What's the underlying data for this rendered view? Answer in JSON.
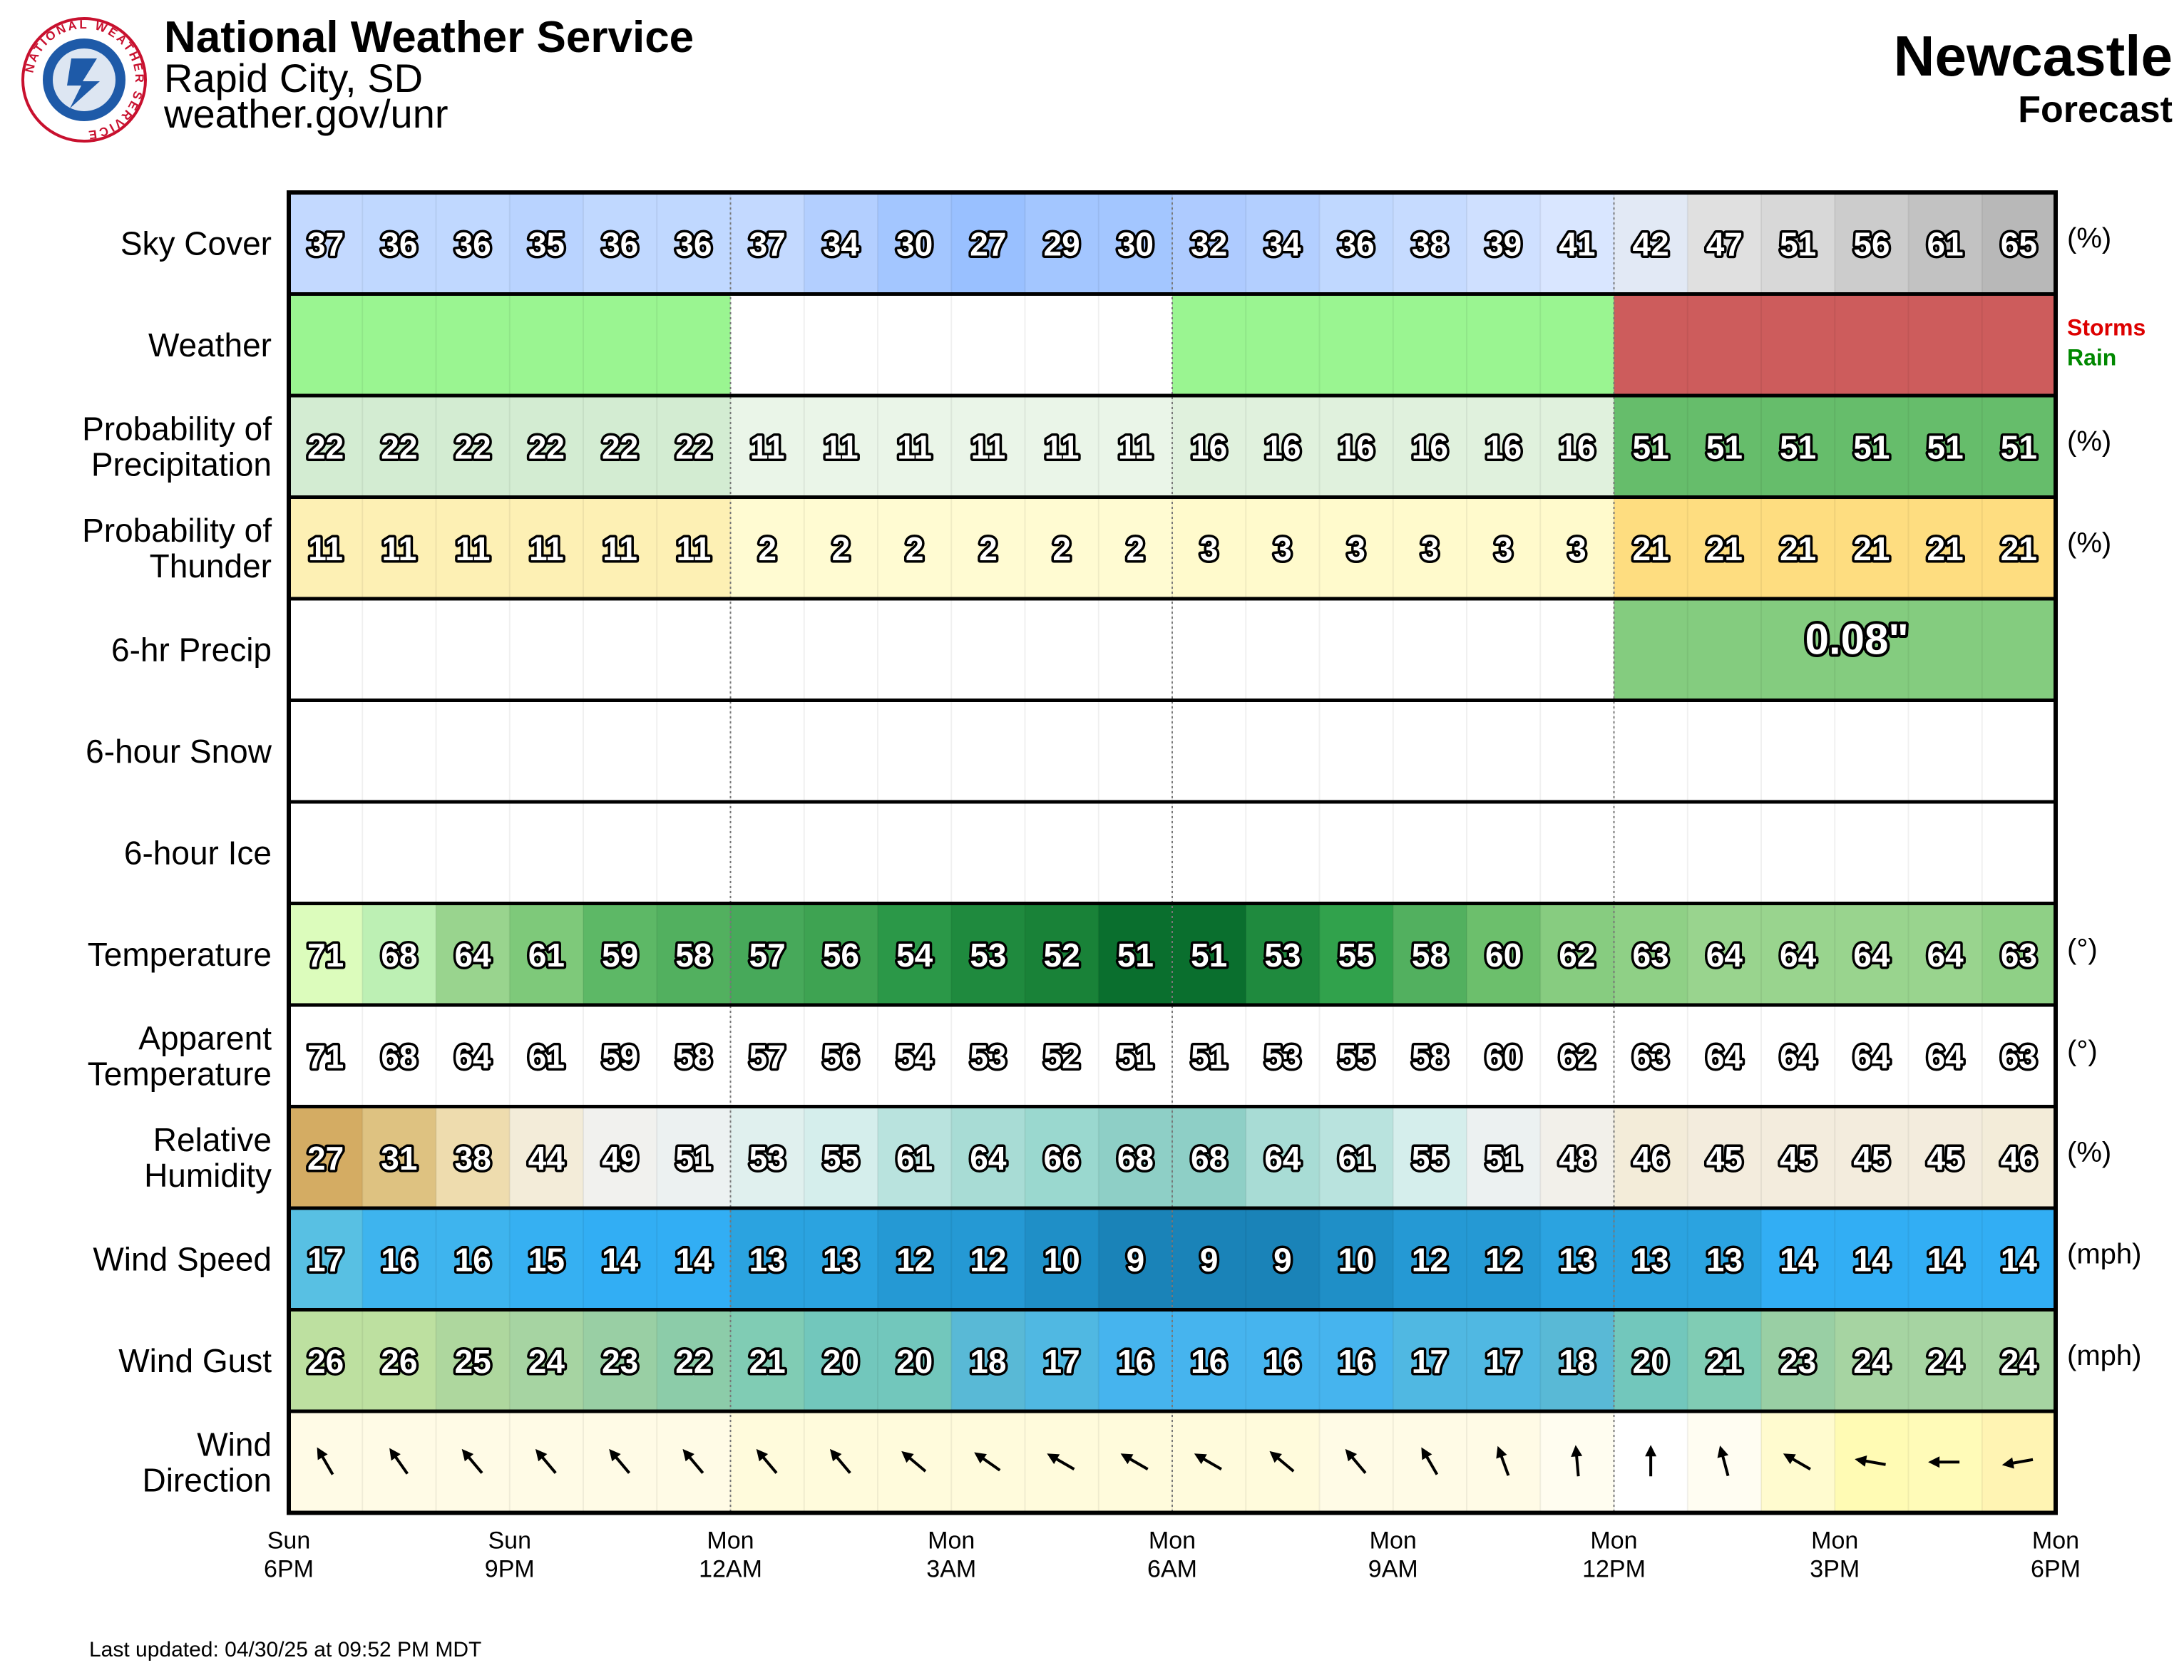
{
  "header": {
    "org": "National Weather Service",
    "office": "Rapid City, SD",
    "url": "weather.gov/unr",
    "location": "Newcastle",
    "subtitle": "Forecast",
    "logo_text": "NATIONAL WEATHER SERVICE"
  },
  "footer": {
    "updated": "Last updated: 04/30/25 at 09:52 PM MDT"
  },
  "chart_data": {
    "type": "table",
    "hours": 24,
    "x_ticks": [
      {
        "index": 0,
        "day": "Sun",
        "time": "6PM"
      },
      {
        "index": 3,
        "day": "Sun",
        "time": "9PM"
      },
      {
        "index": 6,
        "day": "Mon",
        "time": "12AM"
      },
      {
        "index": 9,
        "day": "Mon",
        "time": "3AM"
      },
      {
        "index": 12,
        "day": "Mon",
        "time": "6AM"
      },
      {
        "index": 15,
        "day": "Mon",
        "time": "9AM"
      },
      {
        "index": 18,
        "day": "Mon",
        "time": "12PM"
      },
      {
        "index": 21,
        "day": "Mon",
        "time": "3PM"
      },
      {
        "index": 24,
        "day": "Mon",
        "time": "6PM"
      }
    ],
    "rows": [
      {
        "key": "sky",
        "label": [
          "Sky Cover"
        ],
        "unit": "(%)",
        "values": [
          37,
          36,
          36,
          35,
          36,
          36,
          37,
          34,
          30,
          27,
          29,
          30,
          32,
          34,
          36,
          38,
          39,
          41,
          42,
          47,
          51,
          56,
          61,
          65
        ],
        "colors": [
          "#c3d9ff",
          "#c0d8ff",
          "#c0d8ff",
          "#b9d3ff",
          "#c0d8ff",
          "#c0d8ff",
          "#c3d9ff",
          "#b3cfff",
          "#a3c6ff",
          "#99c0ff",
          "#a3c6ff",
          "#a3c6ff",
          "#aecbff",
          "#b3cfff",
          "#c0d8ff",
          "#c6dbff",
          "#cfe0ff",
          "#d9e6ff",
          "#e2e9f5",
          "#e0e0e0",
          "#d8d8d8",
          "#cccccc",
          "#c2c2c2",
          "#b8b8b8"
        ]
      },
      {
        "key": "weather",
        "label": [
          "Weather"
        ],
        "unit": "",
        "colors": [
          "#9af591",
          "#9af591",
          "#9af591",
          "#9af591",
          "#9af591",
          "#9af591",
          "#ffffff",
          "#ffffff",
          "#ffffff",
          "#ffffff",
          "#ffffff",
          "#ffffff",
          "#9af591",
          "#9af591",
          "#9af591",
          "#9af591",
          "#9af591",
          "#9af591",
          "#cd5c5c",
          "#cd5c5c",
          "#cd5c5c",
          "#cd5c5c",
          "#cd5c5c",
          "#cd5c5c"
        ],
        "legend": [
          {
            "text": "Storms",
            "color": "#dd0000"
          },
          {
            "text": "Rain",
            "color": "#008800"
          }
        ]
      },
      {
        "key": "pop",
        "label": [
          "Probability of",
          "Precipitation"
        ],
        "unit": "(%)",
        "values": [
          22,
          22,
          22,
          22,
          22,
          22,
          11,
          11,
          11,
          11,
          11,
          11,
          16,
          16,
          16,
          16,
          16,
          16,
          51,
          51,
          51,
          51,
          51,
          51
        ],
        "colors": [
          "#d3ecd2",
          "#d3ecd2",
          "#d3ecd2",
          "#d3ecd2",
          "#d3ecd2",
          "#d3ecd2",
          "#eaf5e8",
          "#eaf5e8",
          "#eaf5e8",
          "#eaf5e8",
          "#eaf5e8",
          "#eaf5e8",
          "#e0f1dd",
          "#e0f1dd",
          "#e0f1dd",
          "#e0f1dd",
          "#e0f1dd",
          "#e0f1dd",
          "#66bd6b",
          "#66bd6b",
          "#66bd6b",
          "#66bd6b",
          "#66bd6b",
          "#66bd6b"
        ]
      },
      {
        "key": "thunder",
        "label": [
          "Probability of",
          "Thunder"
        ],
        "unit": "(%)",
        "values": [
          11,
          11,
          11,
          11,
          11,
          11,
          2,
          2,
          2,
          2,
          2,
          2,
          3,
          3,
          3,
          3,
          3,
          3,
          21,
          21,
          21,
          21,
          21,
          21
        ],
        "colors": [
          "#fdf0b4",
          "#fdf0b4",
          "#fdf0b4",
          "#fdf0b4",
          "#fdf0b4",
          "#fdf0b4",
          "#fffbd2",
          "#fffbd2",
          "#fffbd2",
          "#fffbd2",
          "#fffbd2",
          "#fffbd2",
          "#fffacc",
          "#fffacc",
          "#fffacc",
          "#fffacc",
          "#fffacc",
          "#fffacc",
          "#fedd80",
          "#fedd80",
          "#fedd80",
          "#fedd80",
          "#fedd80",
          "#fedd80"
        ]
      },
      {
        "key": "precip6",
        "label": [
          "6-hr Precip"
        ],
        "unit": "",
        "blocks": [
          {
            "start": 18,
            "end": 24,
            "value": "0.08\"",
            "color": "#84cc7f"
          }
        ]
      },
      {
        "key": "snow6",
        "label": [
          "6-hour Snow"
        ],
        "unit": ""
      },
      {
        "key": "ice6",
        "label": [
          "6-hour Ice"
        ],
        "unit": ""
      },
      {
        "key": "temp",
        "label": [
          "Temperature"
        ],
        "unit": "(°)",
        "values": [
          71,
          68,
          64,
          61,
          59,
          58,
          57,
          56,
          54,
          53,
          52,
          51,
          51,
          53,
          55,
          58,
          60,
          62,
          63,
          64,
          64,
          64,
          64,
          63
        ],
        "colors": [
          "#dcfcbc",
          "#bdf0b4",
          "#99d48e",
          "#7ec97a",
          "#5db866",
          "#52b05f",
          "#47a95a",
          "#3ea352",
          "#2b9848",
          "#1f8a3e",
          "#198238",
          "#0a6f2e",
          "#0a6f2e",
          "#1f8a3e",
          "#31a24c",
          "#52b05f",
          "#6cbf6c",
          "#87cc80",
          "#8fd086",
          "#99d48e",
          "#99d48e",
          "#99d48e",
          "#99d48e",
          "#8fd086"
        ]
      },
      {
        "key": "apparent",
        "label": [
          "Apparent",
          "Temperature"
        ],
        "unit": "(°)",
        "values": [
          71,
          68,
          64,
          61,
          59,
          58,
          57,
          56,
          54,
          53,
          52,
          51,
          51,
          53,
          55,
          58,
          60,
          62,
          63,
          64,
          64,
          64,
          64,
          63
        ]
      },
      {
        "key": "rh",
        "label": [
          "Relative",
          "Humidity"
        ],
        "unit": "(%)",
        "values": [
          27,
          31,
          38,
          44,
          49,
          51,
          53,
          55,
          61,
          64,
          66,
          68,
          68,
          64,
          61,
          55,
          51,
          48,
          46,
          45,
          45,
          45,
          45,
          46
        ],
        "colors": [
          "#d4ac63",
          "#dec281",
          "#eedcae",
          "#f3ecd9",
          "#f1f1ee",
          "#ecf1f1",
          "#e0f0ee",
          "#d5eeec",
          "#b9e3de",
          "#a8dcd5",
          "#9ad8cf",
          "#8ecfc6",
          "#8ecfc6",
          "#a8dcd5",
          "#b9e3de",
          "#d5eeec",
          "#ecf1f1",
          "#f2f0ea",
          "#f3ecd9",
          "#f3ecdd",
          "#f3ecdd",
          "#f3ecdd",
          "#f3ecdd",
          "#f3ecd9"
        ]
      },
      {
        "key": "wspd",
        "label": [
          "Wind Speed"
        ],
        "unit": "(mph)",
        "values": [
          17,
          16,
          16,
          15,
          14,
          14,
          13,
          13,
          12,
          12,
          10,
          9,
          9,
          9,
          10,
          12,
          12,
          13,
          13,
          13,
          14,
          14,
          14,
          14
        ],
        "colors": [
          "#58c0e3",
          "#3eb4ee",
          "#3eb4ee",
          "#36b0f2",
          "#32aef4",
          "#32aef4",
          "#2ba3e0",
          "#2ba3e0",
          "#2599d4",
          "#2599d4",
          "#1f8fc7",
          "#1a83b8",
          "#1a83b8",
          "#1a83b8",
          "#1f8fc7",
          "#2599d4",
          "#2599d4",
          "#2ba3e0",
          "#2ba3e0",
          "#2ba3e0",
          "#32aef4",
          "#32aef4",
          "#32aef4",
          "#32aef4"
        ]
      },
      {
        "key": "wgust",
        "label": [
          "Wind Gust"
        ],
        "unit": "(mph)",
        "values": [
          26,
          26,
          25,
          24,
          23,
          22,
          21,
          20,
          20,
          18,
          17,
          16,
          16,
          16,
          16,
          17,
          17,
          18,
          20,
          21,
          23,
          24,
          24,
          24
        ],
        "colors": [
          "#bde0a0",
          "#bde0a0",
          "#aed79e",
          "#a6d4a2",
          "#99cfa4",
          "#8ccca9",
          "#80ccb4",
          "#72c7bc",
          "#72c7bc",
          "#59b9d6",
          "#50b8e2",
          "#46b4ee",
          "#46b4ee",
          "#46b4ee",
          "#46b4ee",
          "#50b8e2",
          "#50b8e2",
          "#59b9d6",
          "#72c7bc",
          "#80ccb4",
          "#99cfa4",
          "#a6d4a2",
          "#a6d4a2",
          "#a6d4a2"
        ]
      },
      {
        "key": "wdir",
        "label": [
          "Wind",
          "Direction"
        ],
        "unit": "",
        "values": [
          330,
          325,
          320,
          320,
          320,
          320,
          320,
          320,
          310,
          305,
          300,
          300,
          300,
          310,
          320,
          330,
          340,
          355,
          0,
          345,
          300,
          280,
          270,
          260
        ],
        "colors": [
          "#fffbe6",
          "#fffbe6",
          "#fffbe6",
          "#fffbe6",
          "#fffbe6",
          "#fffbe6",
          "#fffbdc",
          "#fffbdc",
          "#fffbdc",
          "#fffbdc",
          "#fffbdc",
          "#fffbdc",
          "#fffbdc",
          "#fffbdc",
          "#fffbe6",
          "#fffbe6",
          "#fffbe6",
          "#fffdf0",
          "#ffffff",
          "#fffdf2",
          "#fffbcf",
          "#fffbb4",
          "#fffbb8",
          "#fff4b3"
        ]
      }
    ]
  }
}
